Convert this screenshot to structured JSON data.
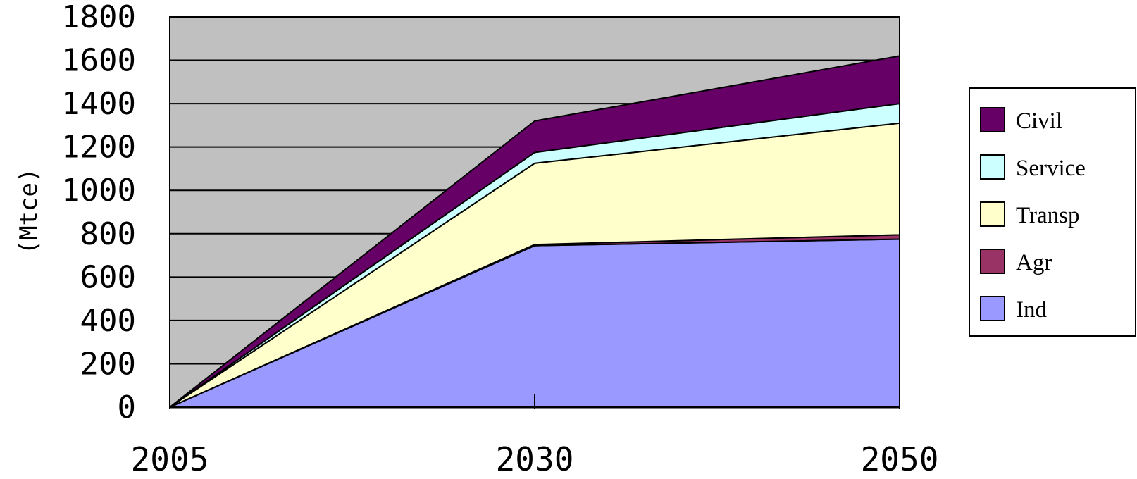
{
  "chart_data": {
    "type": "area",
    "stacked": true,
    "x": [
      "2005",
      "2030",
      "2050"
    ],
    "ylabel": "(Mtce)",
    "ylim": [
      0,
      1800
    ],
    "yticks": [
      "0",
      "200",
      "400",
      "600",
      "800",
      "1000",
      "1200",
      "1400",
      "1600",
      "1800"
    ],
    "grid": true,
    "legend_position": "right",
    "plot_background": "#c0c0c0",
    "series": [
      {
        "name": "Ind",
        "values": [
          0,
          745,
          775
        ],
        "color": "#9999ff"
      },
      {
        "name": "Agr",
        "values": [
          0,
          5,
          20
        ],
        "color": "#993366"
      },
      {
        "name": "Transp",
        "values": [
          0,
          375,
          515
        ],
        "color": "#ffffcc"
      },
      {
        "name": "Service",
        "values": [
          0,
          50,
          90
        ],
        "color": "#ccffff"
      },
      {
        "name": "Civil",
        "values": [
          0,
          145,
          220
        ],
        "color": "#660066"
      }
    ],
    "legend_order": [
      "Civil",
      "Service",
      "Transp",
      "Agr",
      "Ind"
    ]
  }
}
